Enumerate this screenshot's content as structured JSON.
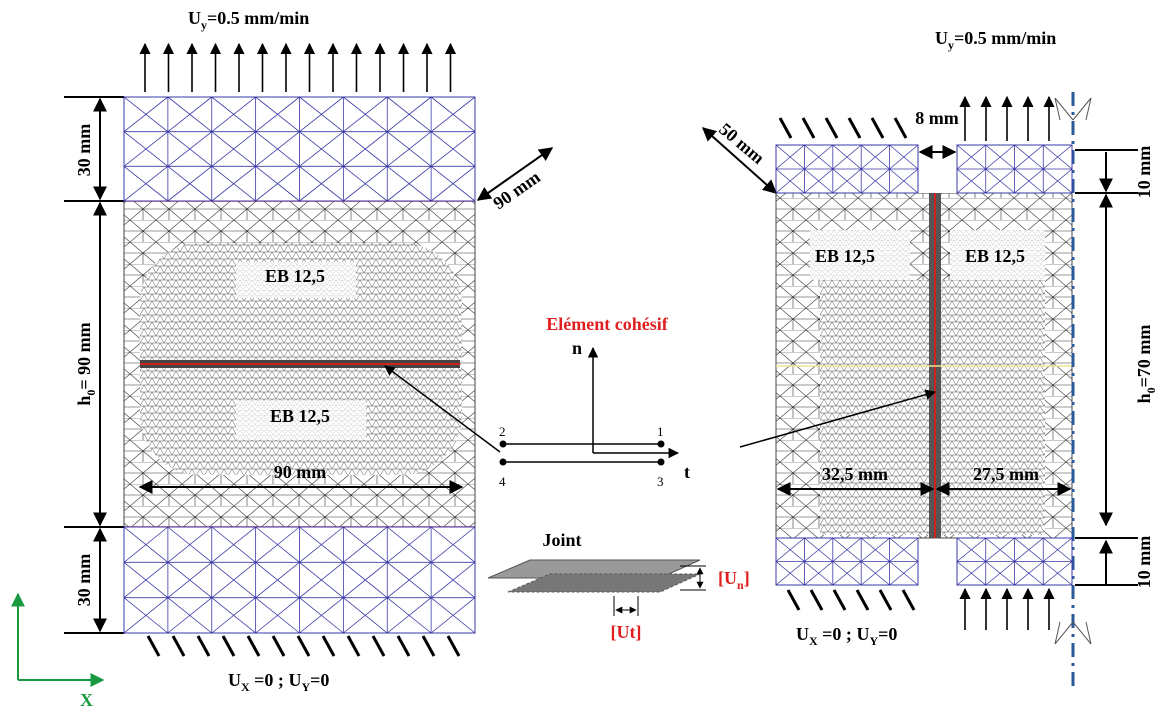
{
  "left": {
    "load": {
      "u": "U",
      "sub": "y",
      "rest": "=0.5 mm/min"
    },
    "clamp_top": "30 mm",
    "depth": "90 mm",
    "height": {
      "h": "h",
      "sub": "0",
      "rest": "= 90 mm"
    },
    "material_top": "EB 12,5",
    "material_bottom": "EB 12,5",
    "width": "90 mm",
    "clamp_bottom": "30 mm",
    "bc": {
      "u1": "U",
      "sub1": "X",
      "mid": " =0 ; ",
      "u2": "U",
      "sub2": "Y",
      "rest": "=0"
    }
  },
  "axis_x": "X",
  "element": {
    "title": "Elément cohésif",
    "n": "n",
    "t": "t",
    "nodes": [
      "1",
      "2",
      "3",
      "4"
    ],
    "joint": "Joint",
    "un": {
      "open": "[U",
      "sub": "n",
      "close": "]"
    },
    "ut": "[Ut]"
  },
  "right": {
    "load": {
      "u": "U",
      "sub": "y",
      "rest": "=0.5 mm/min"
    },
    "gap": "8 mm",
    "depth": "50 mm",
    "clamp_top": "10 mm",
    "material_left": "EB 12,5",
    "material_right": "EB 12,5",
    "height": {
      "h": "h",
      "sub": "0",
      "rest": "=70 mm"
    },
    "width_left": "32,5 mm",
    "width_right": "27,5 mm",
    "clamp_bottom": "10 mm",
    "bc": {
      "u1": "U",
      "sub1": "X",
      "mid": " =0 ; ",
      "u2": "U",
      "sub2": "Y",
      "rest": "=0"
    }
  }
}
